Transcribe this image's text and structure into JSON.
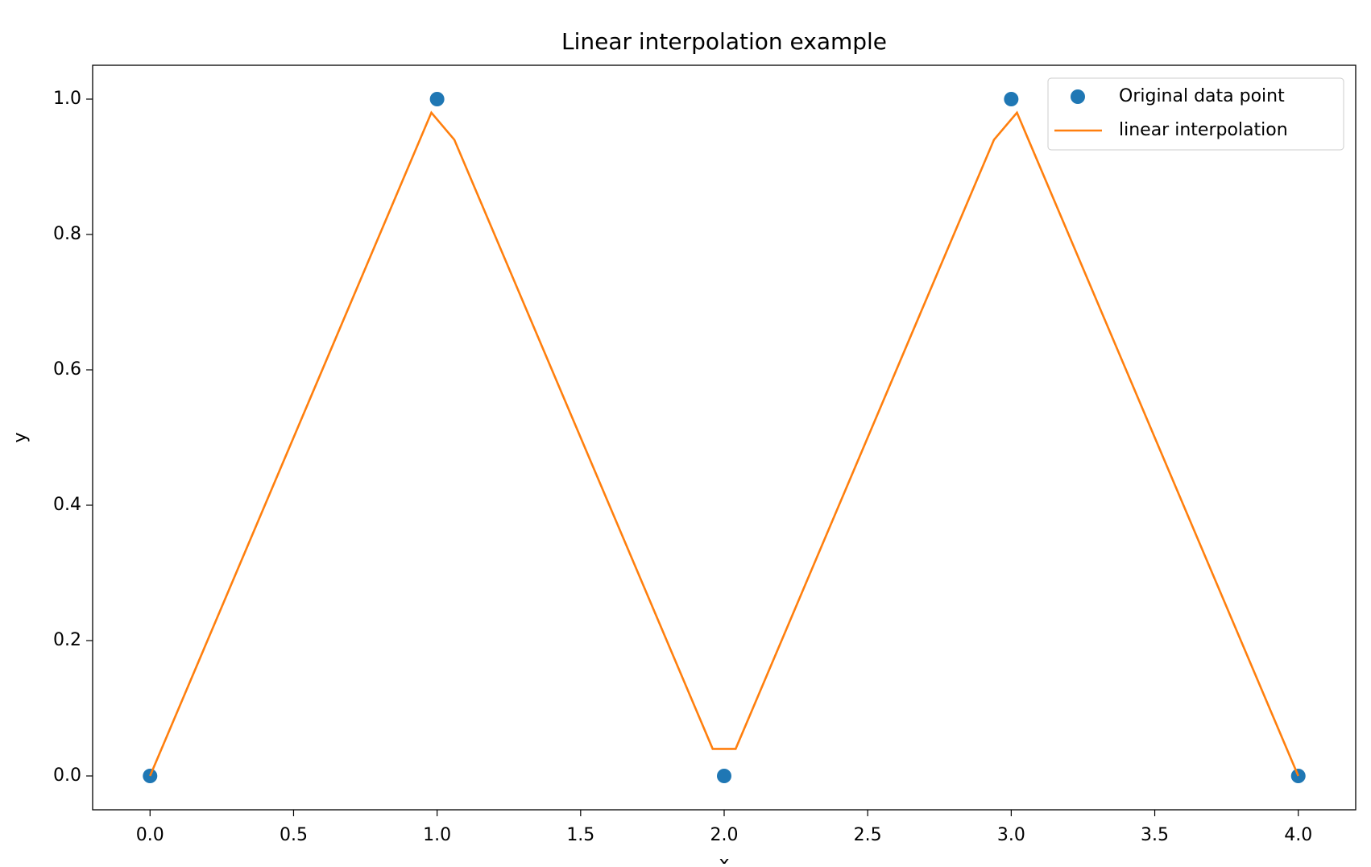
{
  "chart_data": {
    "type": "line",
    "title": "Linear interpolation example",
    "x_label": "x",
    "y_label": "y",
    "series": [
      {
        "name": "Original data point",
        "color": "#1f77b4",
        "mode": "markers",
        "x": [
          0,
          1,
          2,
          3,
          4
        ],
        "values": [
          0,
          1,
          0,
          1,
          0
        ]
      },
      {
        "name": "linear interpolation",
        "color": "#ff7f0e",
        "mode": "line",
        "x": [
          0,
          0.98,
          1.06,
          1.96,
          2.04,
          2.94,
          3.02,
          4
        ],
        "values": [
          0,
          0.98,
          0.94,
          0.04,
          0.04,
          0.94,
          0.98,
          0
        ]
      }
    ],
    "xlim": [
      -0.2,
      4.2
    ],
    "ylim": [
      -0.05,
      1.05
    ],
    "xticks": [
      {
        "value": 0,
        "label": "0.0"
      },
      0.5,
      {
        "value": 1,
        "label": "1.0"
      },
      1.5,
      {
        "value": 2,
        "label": "2.0"
      },
      2.5,
      {
        "value": 3,
        "label": "3.0"
      },
      3.5,
      {
        "value": 4,
        "label": "4.0"
      }
    ],
    "yticks": [
      {
        "value": 0,
        "label": "0.0"
      },
      0.2,
      0.4,
      0.6,
      0.8,
      {
        "value": 1,
        "label": "1.0"
      }
    ],
    "grid": false,
    "legend": "upper right"
  }
}
